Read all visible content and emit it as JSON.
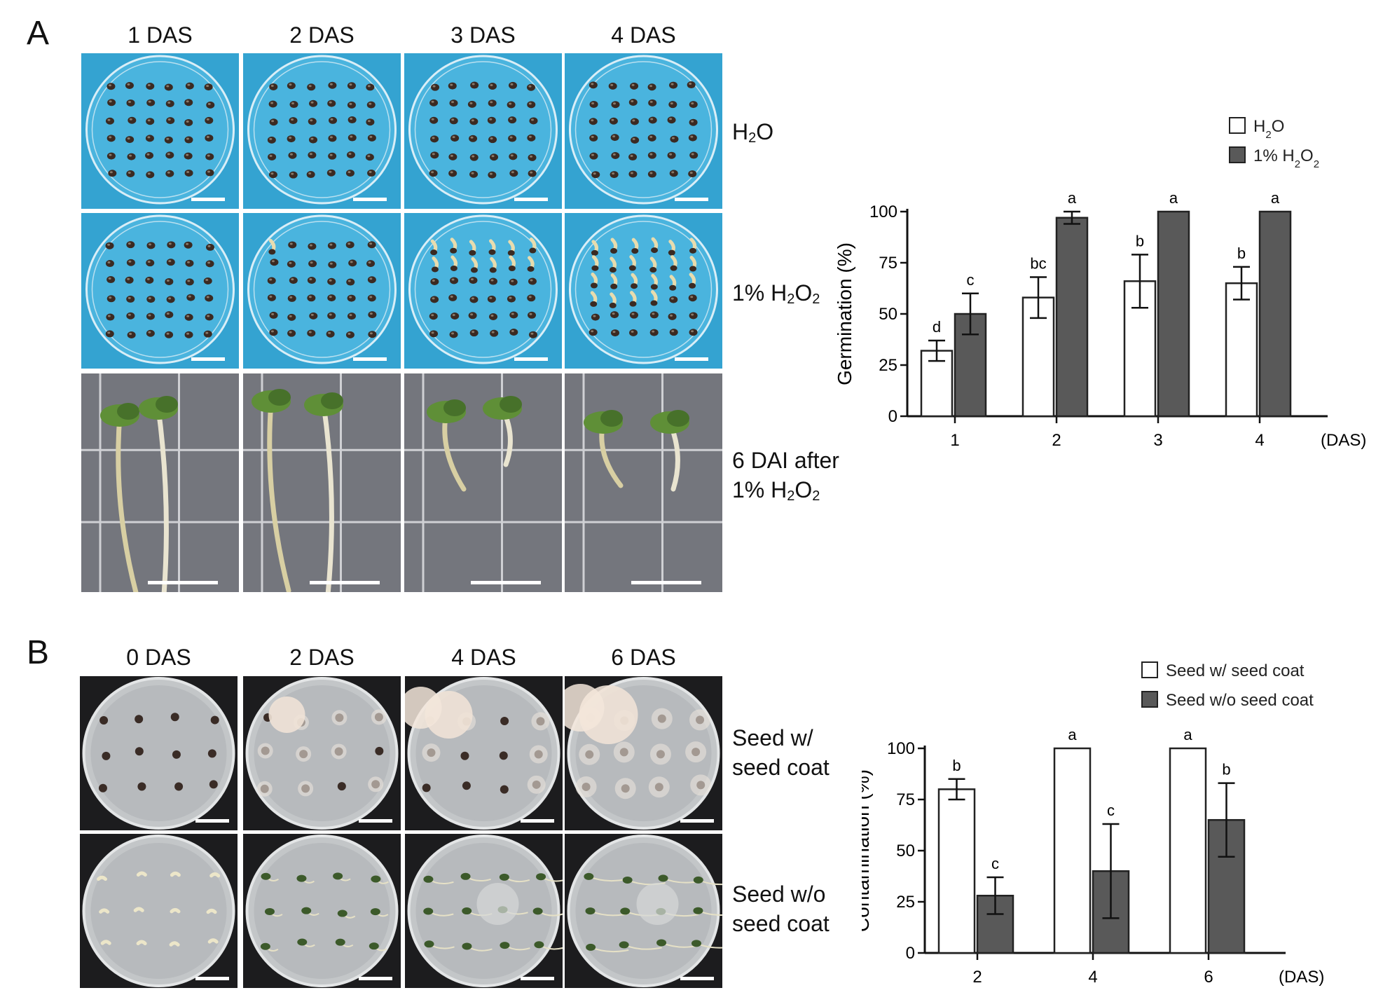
{
  "panel_a": {
    "letter": "A",
    "columns": [
      "1 DAS",
      "2 DAS",
      "3 DAS",
      "4 DAS"
    ],
    "rows": [
      {
        "label_html": "H<sub>2</sub>O",
        "kind": "dish"
      },
      {
        "label_html": "1% H<sub>2</sub>O<sub>2</sub>",
        "kind": "dish"
      },
      {
        "label_html": "6 DAI after<br>1% H<sub>2</sub>O<sub>2</sub>",
        "kind": "grid"
      }
    ],
    "germinated_counts": [
      0,
      1,
      12,
      22
    ]
  },
  "panel_b": {
    "letter": "B",
    "columns": [
      "0 DAS",
      "2 DAS",
      "4 DAS",
      "6 DAS"
    ],
    "rows": [
      {
        "label_html": "Seed w/<br>seed coat",
        "kind": "agar"
      },
      {
        "label_html": "Seed w/o<br>seed coat",
        "kind": "agar2"
      }
    ]
  },
  "chart_data": [
    {
      "type": "bar",
      "ylabel": "Germination (%)",
      "xunit": "(DAS)",
      "categories": [
        "1",
        "2",
        "3",
        "4"
      ],
      "ylim": [
        0,
        100
      ],
      "yticks": [
        0,
        25,
        50,
        75,
        100
      ],
      "series": [
        {
          "name": "H2O",
          "legend_html": "H<tspan baseline-shift='sub' font-size='15'>2</tspan>O",
          "color": "#ffffff",
          "values": [
            32,
            58,
            66,
            65
          ],
          "errors": [
            5,
            10,
            13,
            8
          ],
          "letters": [
            "d",
            "bc",
            "b",
            "b"
          ]
        },
        {
          "name": "1% H2O2",
          "legend_html": "1% H<tspan baseline-shift='sub' font-size='15'>2</tspan>O<tspan baseline-shift='sub' font-size='15'>2</tspan>",
          "color": "#595959",
          "values": [
            50,
            97,
            100,
            100
          ],
          "errors": [
            10,
            3,
            0,
            0
          ],
          "letters": [
            "c",
            "a",
            "a",
            "a"
          ]
        }
      ]
    },
    {
      "type": "bar",
      "ylabel": "Contamination (%)",
      "xunit": "(DAS)",
      "categories": [
        "2",
        "4",
        "6"
      ],
      "ylim": [
        0,
        100
      ],
      "yticks": [
        0,
        25,
        50,
        75,
        100
      ],
      "series": [
        {
          "name": "Seed w/ seed coat",
          "legend_html": "Seed w/ seed coat",
          "color": "#ffffff",
          "values": [
            80,
            100,
            100
          ],
          "errors": [
            5,
            0,
            0
          ],
          "letters": [
            "b",
            "a",
            "a"
          ]
        },
        {
          "name": "Seed w/o seed coat",
          "legend_html": "Seed w/o seed coat",
          "color": "#595959",
          "values": [
            28,
            40,
            65
          ],
          "errors": [
            9,
            23,
            18
          ],
          "letters": [
            "c",
            "c",
            "b"
          ]
        }
      ]
    }
  ]
}
